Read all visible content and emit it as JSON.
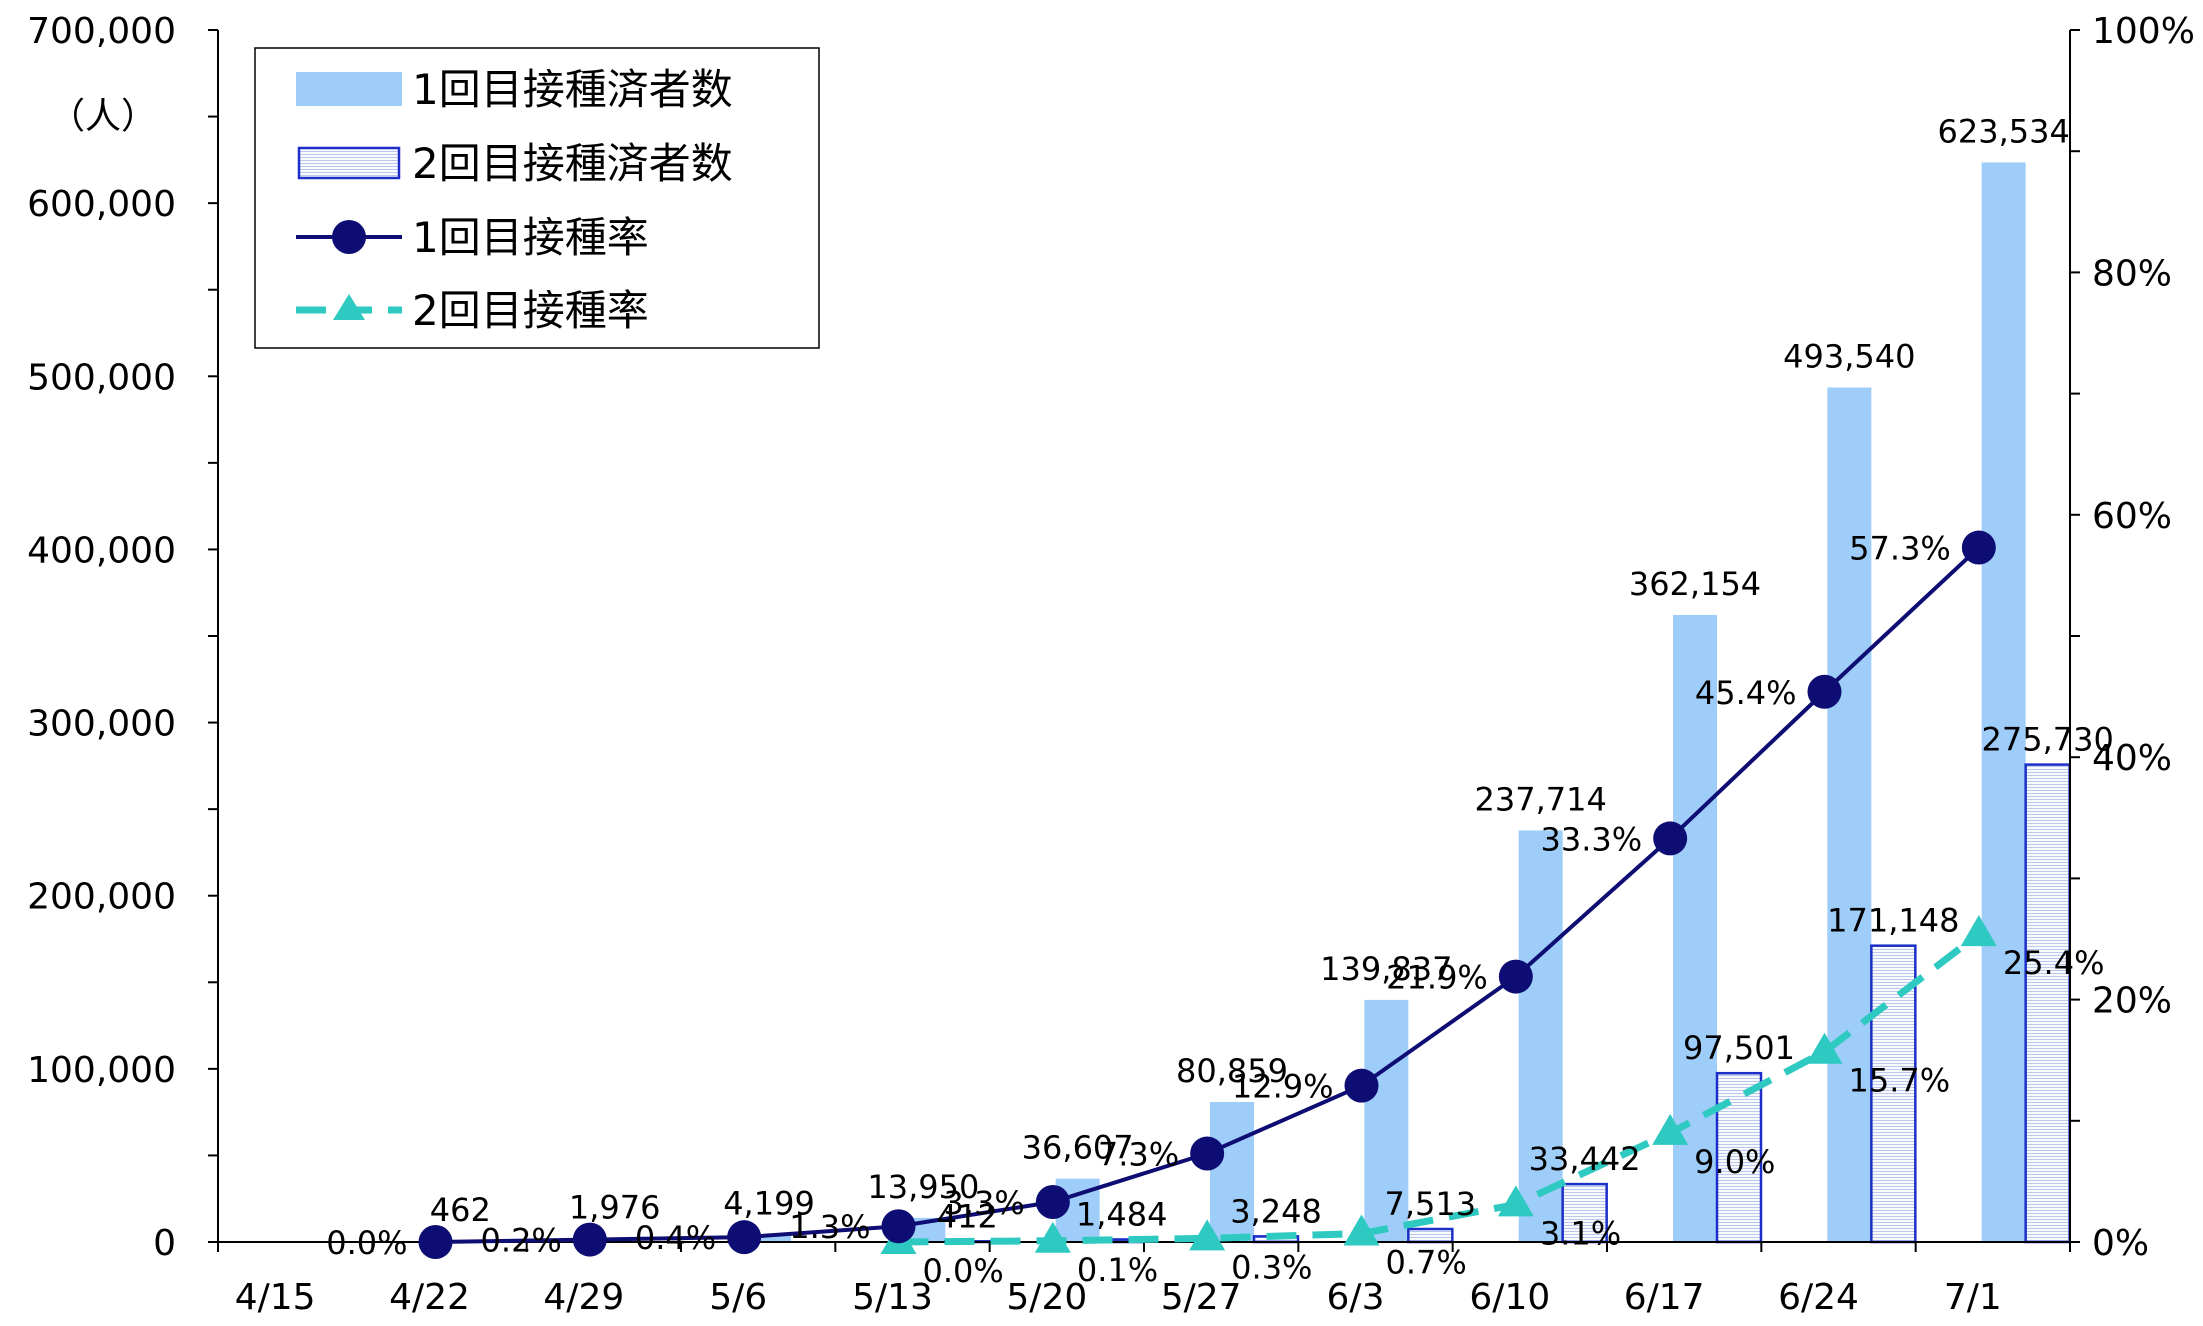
{
  "chart_data": {
    "type": "bar",
    "unit_label": "（人）",
    "categories": [
      "4/15",
      "4/22",
      "4/29",
      "5/6",
      "5/13",
      "5/20",
      "5/27",
      "6/3",
      "6/10",
      "6/17",
      "6/24",
      "7/1"
    ],
    "series": [
      {
        "name": "1回目接種済者数",
        "kind": "bar",
        "axis": "left",
        "color": "#9fcdfa",
        "values": [
          null,
          462,
          1976,
          4199,
          13950,
          36607,
          80859,
          139837,
          237714,
          362154,
          493540,
          623534
        ],
        "labels": [
          "",
          "462",
          "1,976",
          "4,199",
          "13,950",
          "36,607",
          "80,859",
          "139,837",
          "237,714",
          "362,154",
          "493,540",
          "623,534"
        ]
      },
      {
        "name": "2回目接種済者数",
        "kind": "bar",
        "axis": "left",
        "color": "#1c2fc8",
        "values": [
          null,
          null,
          null,
          null,
          412,
          1484,
          3248,
          7513,
          33442,
          97501,
          171148,
          275730
        ],
        "labels": [
          "",
          "",
          "",
          "",
          "412",
          "1,484",
          "3,248",
          "7,513",
          "33,442",
          "97,501",
          "171,148",
          "275,730"
        ]
      },
      {
        "name": "1回目接種率",
        "kind": "line",
        "axis": "right",
        "color": "#0d0d73",
        "values": [
          null,
          0.0,
          0.2,
          0.4,
          1.3,
          3.3,
          7.3,
          12.9,
          21.9,
          33.3,
          45.4,
          57.3
        ],
        "labels": [
          "",
          "0.0%",
          "0.2%",
          "0.4%",
          "1.3%",
          "3.3%",
          "7.3%",
          "12.9%",
          "21.9%",
          "33.3%",
          "45.4%",
          "57.3%"
        ]
      },
      {
        "name": "2回目接種率",
        "kind": "line",
        "axis": "right",
        "color": "#2ec9c0",
        "values": [
          null,
          null,
          null,
          null,
          0.0,
          0.1,
          0.3,
          0.7,
          3.1,
          9.0,
          15.7,
          25.4
        ],
        "labels": [
          "",
          "",
          "",
          "",
          "0.0%",
          "0.1%",
          "0.3%",
          "0.7%",
          "3.1%",
          "9.0%",
          "15.7%",
          "25.4%"
        ]
      }
    ],
    "y_left": {
      "min": 0,
      "max": 700000,
      "ticks": [
        "0",
        "100,000",
        "200,000",
        "300,000",
        "400,000",
        "500,000",
        "600,000",
        "700,000"
      ]
    },
    "y_right": {
      "min": 0,
      "max": 100,
      "ticks": [
        "0%",
        "20%",
        "40%",
        "60%",
        "80%",
        "100%"
      ]
    },
    "legend_position": "top-left",
    "grid": false
  }
}
